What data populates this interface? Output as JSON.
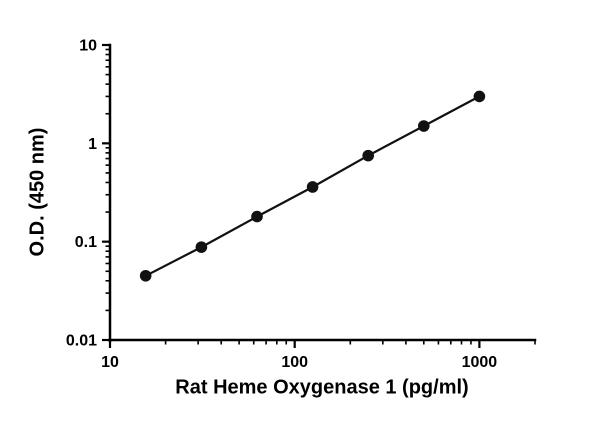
{
  "chart_data": {
    "type": "scatter",
    "subtype": "log-log standard curve with connecting line",
    "title": "",
    "xlabel": "Rat Heme Oxygenase 1 (pg/ml)",
    "ylabel": "O.D. (450 nm)",
    "x": [
      15.6,
      31.25,
      62.5,
      125,
      250,
      500,
      1000
    ],
    "y": [
      0.045,
      0.088,
      0.18,
      0.36,
      0.75,
      1.5,
      3.0
    ],
    "xscale": "log",
    "yscale": "log",
    "xlim": [
      10,
      2000
    ],
    "ylim": [
      0.01,
      10
    ],
    "x_major_ticks": [
      10,
      100,
      1000
    ],
    "x_tick_labels": [
      "10",
      "100",
      "1000"
    ],
    "y_major_ticks": [
      0.01,
      0.1,
      1,
      10
    ],
    "y_tick_labels": [
      "0.01",
      "0.1",
      "1",
      "10"
    ],
    "grid": false,
    "legend": "none",
    "marker": "filled-circle",
    "marker_color": "#111111",
    "line_color": "#111111",
    "axis_color": "#000000"
  }
}
